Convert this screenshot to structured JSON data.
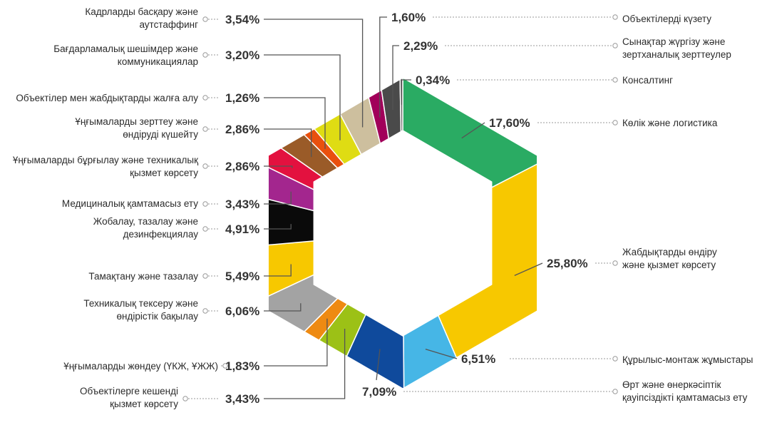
{
  "chart_data": {
    "type": "donut",
    "shape": "hexagon",
    "slices": [
      {
        "label": "Көлік және логистика",
        "value": 17.6,
        "display": "17,60%",
        "color": "#2aab63"
      },
      {
        "label": "Жабдықтарды өндіру және қызмет көрсету",
        "value": 25.8,
        "display": "25,80%",
        "color": "#f7c800"
      },
      {
        "label": "Құрылыс-монтаж жұмыстары",
        "value": 6.51,
        "display": "6,51%",
        "color": "#46b6e6"
      },
      {
        "label": "Өрт және өнеркәсіптік қауіпсіздікті қамтамасыз ету",
        "value": 7.09,
        "display": "7,09%",
        "color": "#0f4a9c"
      },
      {
        "label": "Объектілерге кешенді қызмет көрсету",
        "value": 3.43,
        "display": "3,43%",
        "color": "#9cc116"
      },
      {
        "label": "Ұңғымаларды жөндеу (ҮКЖ, ҰЖЖ)",
        "value": 1.83,
        "display": "1,83%",
        "color": "#ee8a12"
      },
      {
        "label": "Техникалық тексеру және өндірістік бақылау",
        "value": 6.06,
        "display": "6,06%",
        "color": "#a3a3a3"
      },
      {
        "label": "Тамақтану және тазалау",
        "value": 5.49,
        "display": "5,49%",
        "color": "#f7c800"
      },
      {
        "label": "Жобалау, тазалау және дезинфекциялау",
        "value": 4.91,
        "display": "4,91%",
        "color": "#0a0a0a"
      },
      {
        "label": "Медициналық қамтамасыз ету",
        "value": 3.43,
        "display": "3,43%",
        "color": "#a3268e"
      },
      {
        "label": "Ұңғымаларды бұрғылау және техникалық қызмет көрсету",
        "value": 2.86,
        "display": "2,86%",
        "color": "#e3113f"
      },
      {
        "label": "Ұңғымаларды зерттеу және өндіруді күшейту",
        "value": 2.86,
        "display": "2,86%",
        "color": "#9a5b28"
      },
      {
        "label": "Объектілер мен жабдықтарды жалға алу",
        "value": 1.26,
        "display": "1,26%",
        "color": "#e9500e"
      },
      {
        "label": "Бағдарламалық шешімдер және коммуникациялар",
        "value": 3.2,
        "display": "3,20%",
        "color": "#dfdc13"
      },
      {
        "label": "Кадрларды басқару және аутстаффинг",
        "value": 3.54,
        "display": "3,54%",
        "color": "#cdbf9e"
      },
      {
        "label": "Объектілерді күзету",
        "value": 1.6,
        "display": "1,60%",
        "color": "#a1005a"
      },
      {
        "label": "Сынақтар жүргізу және зертханалық зерттеулер",
        "value": 2.29,
        "display": "2,29%",
        "color": "#4a4a4a"
      },
      {
        "label": "Консалтинг",
        "value": 0.34,
        "display": "0,34%",
        "color": "#6b6b6b"
      }
    ]
  }
}
